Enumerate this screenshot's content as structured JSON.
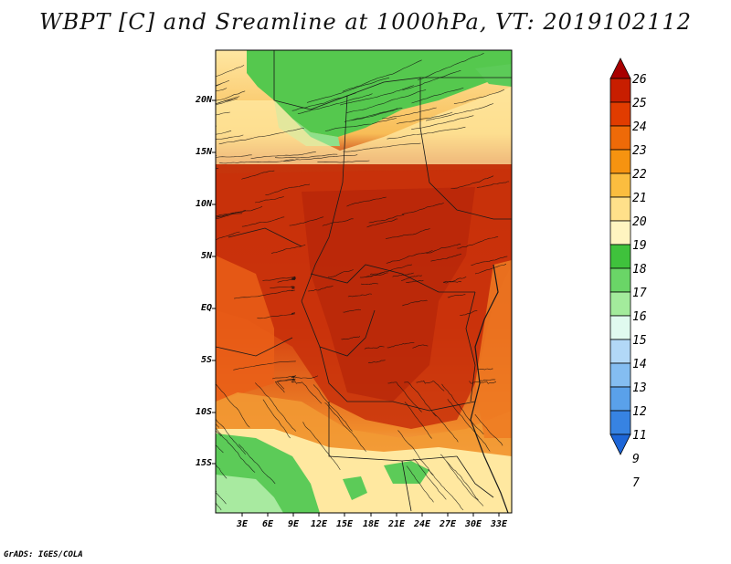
{
  "title": "WBPT [C] and Sreamline at 1000hPa, VT: 2019102112",
  "footer": "GrADS: IGES/COLA",
  "lat_labels": [
    "20N",
    "15N",
    "10N",
    "5N",
    "EQ",
    "5S",
    "10S",
    "15S"
  ],
  "lon_labels": [
    "3E",
    "6E",
    "9E",
    "12E",
    "15E",
    "18E",
    "21E",
    "24E",
    "27E",
    "30E",
    "33E"
  ],
  "colorbar": {
    "labels": [
      "26",
      "25",
      "24",
      "23",
      "22",
      "21",
      "20",
      "19",
      "18",
      "17",
      "16",
      "15",
      "14",
      "13",
      "12",
      "11",
      "9",
      "7"
    ],
    "colors": [
      "#a80000",
      "#c81e00",
      "#e13c00",
      "#ee6a08",
      "#f69310",
      "#fbbd3f",
      "#ffe08a",
      "#fff4c0",
      "#3fc23c",
      "#6ad567",
      "#a3eb9c",
      "#e0faef",
      "#b2d8f7",
      "#84bdf1",
      "#5aa1ea",
      "#3783e2",
      "#1d66d8"
    ]
  },
  "map_legend": {
    "field": "WBPT [C]",
    "level": "1000hPa",
    "valid_time": "2019102112"
  },
  "colors": {
    "hot": "#d03a12",
    "warm": "#ef6a1c",
    "mild": "#f9b24a",
    "cool_yellow": "#ffeaa3",
    "green": "#4ccc4c",
    "light_green": "#a0e898"
  }
}
